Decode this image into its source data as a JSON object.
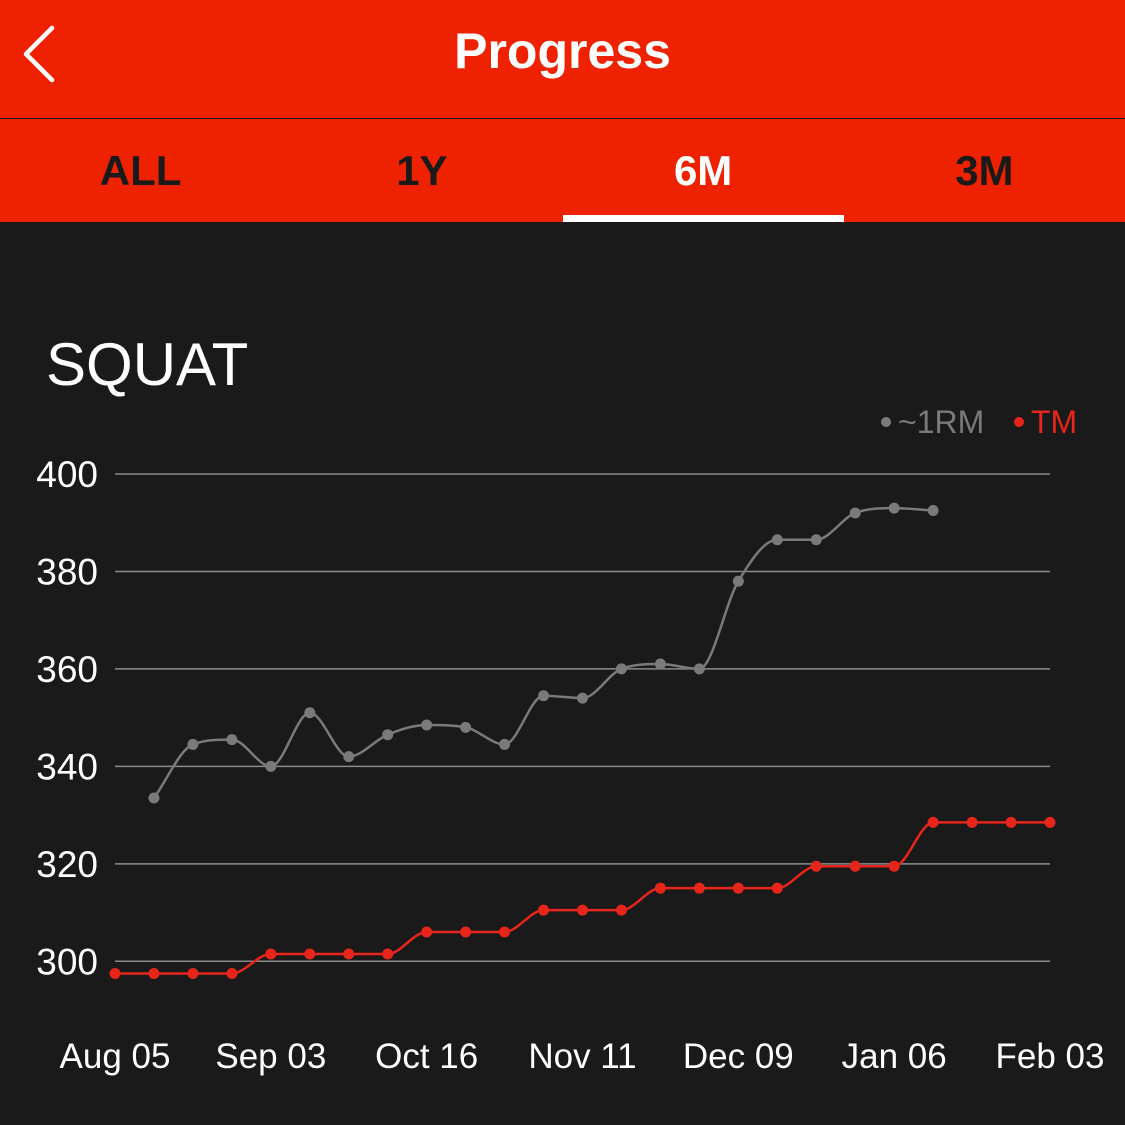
{
  "header": {
    "title": "Progress",
    "back_icon": "chevron-left-icon"
  },
  "tabs": [
    {
      "label": "ALL",
      "active": false
    },
    {
      "label": "1Y",
      "active": false
    },
    {
      "label": "6M",
      "active": true
    },
    {
      "label": "3M",
      "active": false
    }
  ],
  "colors": {
    "accent": "#ee2200",
    "background": "#1a1a1a",
    "series_1rm": "#7a7a7a",
    "series_tm": "#e8251a",
    "grid": "#8a8a8a"
  },
  "chart_data": {
    "type": "line",
    "title": "SQUAT",
    "legend_position": "top-right",
    "grid": true,
    "xlabel": "",
    "ylabel": "",
    "ylim": [
      290,
      400
    ],
    "y_ticks": [
      "300",
      "320",
      "340",
      "360",
      "380",
      "400"
    ],
    "x_tick_labels": [
      "Aug 05",
      "Sep 03",
      "Oct 16",
      "Nov 11",
      "Dec 09",
      "Jan 06",
      "Feb 03"
    ],
    "x_points": 25,
    "series": [
      {
        "name": "~1RM",
        "start_index": 1,
        "values": [
          333.5,
          344.5,
          345.5,
          340,
          351,
          342,
          346.5,
          348.5,
          348,
          344.5,
          354.5,
          354,
          360,
          361,
          360,
          378,
          386.5,
          386.5,
          392,
          393,
          392.5
        ]
      },
      {
        "name": "TM",
        "start_index": 0,
        "values": [
          297.5,
          297.5,
          297.5,
          297.5,
          301.5,
          301.5,
          301.5,
          301.5,
          306,
          306,
          306,
          310.5,
          310.5,
          310.5,
          315,
          315,
          315,
          315,
          319.5,
          319.5,
          319.5,
          328.5,
          328.5,
          328.5,
          328.5
        ]
      }
    ]
  }
}
